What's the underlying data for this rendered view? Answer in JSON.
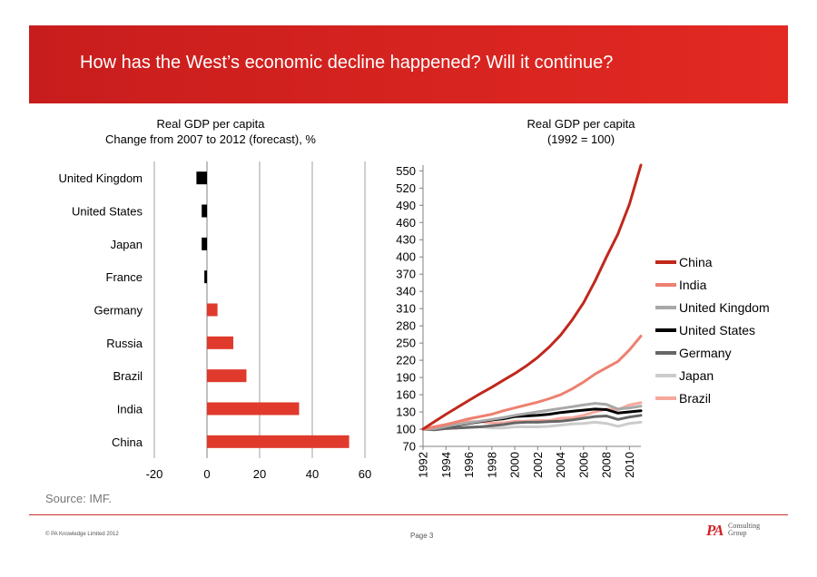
{
  "header": {
    "title": "How has the West’s economic decline happened? Will it continue?"
  },
  "colors": {
    "banner": "#d42222",
    "positive_bar": "#e03a2d",
    "negative_bar": "#000000"
  },
  "chart_data": [
    {
      "type": "bar",
      "orientation": "horizontal",
      "title": "Real GDP per capita",
      "subtitle": "Change from 2007 to 2012 (forecast), %",
      "categories": [
        "United Kingdom",
        "United States",
        "Japan",
        "France",
        "Germany",
        "Russia",
        "Brazil",
        "India",
        "China"
      ],
      "values": [
        -4,
        -2,
        -2,
        -1,
        4,
        10,
        15,
        35,
        54
      ],
      "xlim": [
        -20,
        60
      ],
      "xticks": [
        "-20",
        "0",
        "20",
        "40",
        "60"
      ],
      "grid": true
    },
    {
      "type": "line",
      "title": "Real GDP per capita",
      "subtitle": "(1992 = 100)",
      "x": [
        1992,
        1993,
        1994,
        1995,
        1996,
        1997,
        1998,
        1999,
        2000,
        2001,
        2002,
        2003,
        2004,
        2005,
        2006,
        2007,
        2008,
        2009,
        2010,
        2011
      ],
      "xticks": [
        "1992",
        "1994",
        "1996",
        "1998",
        "2000",
        "2002",
        "2004",
        "2006",
        "2008",
        "2010"
      ],
      "yticks": [
        "70",
        "100",
        "130",
        "160",
        "190",
        "220",
        "250",
        "280",
        "310",
        "340",
        "370",
        "400",
        "430",
        "460",
        "490",
        "520",
        "550"
      ],
      "ylim": [
        70,
        560
      ],
      "legend_position": "right",
      "series": [
        {
          "name": "China",
          "color": "#c0281c",
          "values": [
            100,
            113,
            126,
            138,
            150,
            162,
            173,
            185,
            197,
            210,
            225,
            243,
            264,
            290,
            320,
            358,
            400,
            440,
            492,
            560
          ]
        },
        {
          "name": "India",
          "color": "#ee8070",
          "values": [
            100,
            104,
            108,
            113,
            118,
            122,
            126,
            132,
            137,
            142,
            147,
            153,
            160,
            170,
            182,
            196,
            207,
            218,
            238,
            262
          ]
        },
        {
          "name": "United Kingdom",
          "color": "#a8a8a8",
          "values": [
            100,
            101,
            105,
            108,
            111,
            114,
            117,
            120,
            124,
            127,
            130,
            133,
            136,
            139,
            142,
            145,
            143,
            135,
            137,
            140
          ]
        },
        {
          "name": "United States",
          "color": "#000000",
          "values": [
            100,
            102,
            105,
            107,
            110,
            113,
            116,
            118,
            122,
            123,
            124,
            126,
            129,
            131,
            133,
            135,
            134,
            128,
            130,
            132
          ]
        },
        {
          "name": "Germany",
          "color": "#666666",
          "values": [
            100,
            99,
            101,
            102,
            103,
            104,
            106,
            108,
            111,
            112,
            112,
            113,
            114,
            116,
            119,
            122,
            123,
            117,
            121,
            124
          ]
        },
        {
          "name": "Japan",
          "color": "#cccccc",
          "values": [
            100,
            100,
            101,
            102,
            104,
            104,
            102,
            102,
            104,
            104,
            104,
            105,
            107,
            109,
            110,
            112,
            110,
            105,
            110,
            112
          ]
        },
        {
          "name": "Brazil",
          "color": "#f6a89d",
          "values": [
            100,
            104,
            108,
            111,
            113,
            113,
            111,
            111,
            114,
            114,
            115,
            115,
            119,
            120,
            124,
            130,
            135,
            134,
            142,
            146
          ]
        }
      ]
    }
  ],
  "footer": {
    "source": "Source: IMF.",
    "copyright": "© PA Knowledge Limited 2012",
    "page": "Page 3",
    "logo_mark": "PA",
    "logo_line1": "Consulting",
    "logo_line2": "Group"
  }
}
